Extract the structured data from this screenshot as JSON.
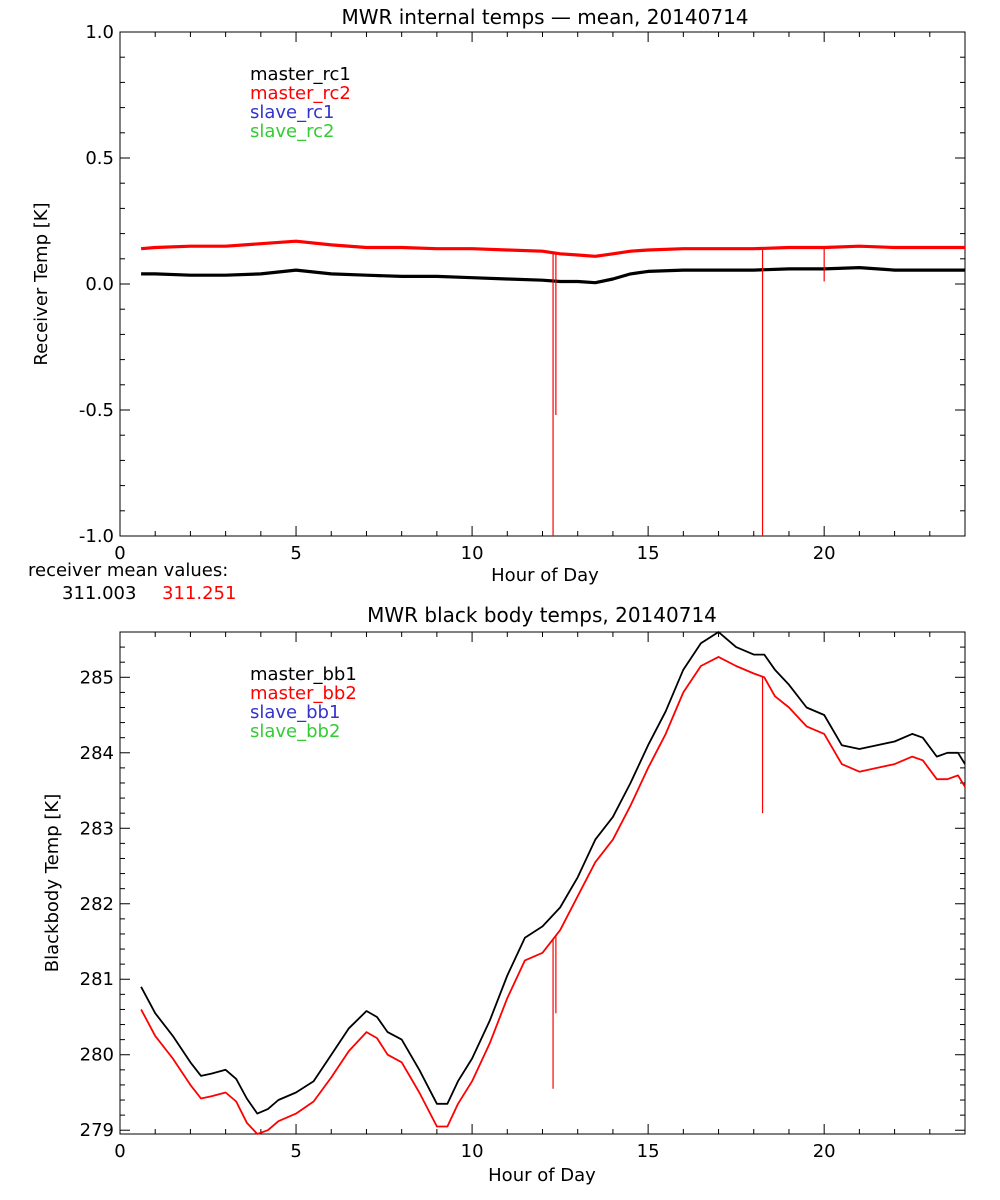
{
  "chart_data": [
    {
      "type": "line",
      "title": "MWR internal temps — mean, 20140714",
      "xlabel": "Hour of Day",
      "ylabel": "Receiver Temp [K]",
      "xlim": [
        0,
        24
      ],
      "ylim": [
        -1.0,
        1.0
      ],
      "x_ticks": [
        0,
        5,
        10,
        15,
        20
      ],
      "x_tick_labels": [
        "0",
        "5",
        "10",
        "15",
        "20"
      ],
      "y_ticks": [
        -1.0,
        -0.5,
        0.0,
        0.5,
        1.0
      ],
      "y_tick_labels": [
        "-1.0",
        "-0.5",
        "0.0",
        "0.5",
        "1.0"
      ],
      "grid": false,
      "legend": [
        {
          "name": "master_rc1",
          "color": "#000000"
        },
        {
          "name": "master_rc2",
          "color": "#ff0000"
        },
        {
          "name": "slave_rc1",
          "color": "#3333cc"
        },
        {
          "name": "slave_rc2",
          "color": "#33cc33"
        }
      ],
      "series": [
        {
          "name": "master_rc1",
          "color": "#000000",
          "x": [
            0.6,
            1,
            2,
            3,
            4,
            5,
            6,
            7,
            8,
            9,
            10,
            11,
            12,
            12.5,
            13,
            13.5,
            14,
            14.5,
            15,
            16,
            17,
            18,
            19,
            20,
            21,
            22,
            23,
            24
          ],
          "y": [
            0.04,
            0.04,
            0.035,
            0.035,
            0.04,
            0.055,
            0.04,
            0.035,
            0.03,
            0.03,
            0.025,
            0.02,
            0.015,
            0.01,
            0.01,
            0.005,
            0.02,
            0.04,
            0.05,
            0.055,
            0.055,
            0.055,
            0.06,
            0.06,
            0.065,
            0.055,
            0.055,
            0.055
          ]
        },
        {
          "name": "master_rc2",
          "color": "#ff0000",
          "x": [
            0.6,
            1,
            2,
            3,
            4,
            5,
            6,
            7,
            8,
            9,
            10,
            11,
            12,
            12.5,
            13,
            13.5,
            14,
            14.5,
            15,
            16,
            17,
            18,
            19,
            20,
            21,
            22,
            23,
            24
          ],
          "y": [
            0.14,
            0.145,
            0.15,
            0.15,
            0.16,
            0.17,
            0.155,
            0.145,
            0.145,
            0.14,
            0.14,
            0.135,
            0.13,
            0.12,
            0.115,
            0.11,
            0.12,
            0.13,
            0.135,
            0.14,
            0.14,
            0.14,
            0.145,
            0.145,
            0.15,
            0.145,
            0.145,
            0.145
          ],
          "spikes": [
            {
              "x": 12.3,
              "y": -1.0
            },
            {
              "x": 12.38,
              "y": -0.52
            },
            {
              "x": 18.25,
              "y": -1.0
            },
            {
              "x": 20.0,
              "y": 0.01
            }
          ]
        }
      ],
      "annotation": {
        "label": "receiver mean values:",
        "values": [
          "311.003",
          "311.251"
        ],
        "colors": [
          "#000000",
          "#ff0000"
        ]
      }
    },
    {
      "type": "line",
      "title": "MWR black body temps, 20140714",
      "xlabel": "Hour of Day",
      "ylabel": "Blackbody Temp [K]",
      "xlim": [
        0,
        24
      ],
      "ylim": [
        278.95,
        285.6
      ],
      "x_ticks": [
        0,
        5,
        10,
        15,
        20
      ],
      "x_tick_labels": [
        "0",
        "5",
        "10",
        "15",
        "20"
      ],
      "y_ticks": [
        279,
        280,
        281,
        282,
        283,
        284,
        285
      ],
      "y_tick_labels": [
        "279",
        "280",
        "281",
        "282",
        "283",
        "284",
        "285"
      ],
      "grid": false,
      "legend": [
        {
          "name": "master_bb1",
          "color": "#000000"
        },
        {
          "name": "master_bb2",
          "color": "#ff0000"
        },
        {
          "name": "slave_bb1",
          "color": "#3333cc"
        },
        {
          "name": "slave_bb2",
          "color": "#33cc33"
        }
      ],
      "series": [
        {
          "name": "master_bb1",
          "color": "#000000",
          "x": [
            0.6,
            1.0,
            1.5,
            2.0,
            2.3,
            2.6,
            3.0,
            3.3,
            3.6,
            3.9,
            4.2,
            4.5,
            5.0,
            5.5,
            6.0,
            6.5,
            7.0,
            7.3,
            7.6,
            8.0,
            8.5,
            9.0,
            9.3,
            9.6,
            10.0,
            10.5,
            11.0,
            11.5,
            12.0,
            12.5,
            13.0,
            13.5,
            14.0,
            14.5,
            15.0,
            15.5,
            16.0,
            16.5,
            17.0,
            17.5,
            18.0,
            18.3,
            18.6,
            19.0,
            19.5,
            20.0,
            20.5,
            21.0,
            21.5,
            22.0,
            22.5,
            22.8,
            23.2,
            23.5,
            23.8,
            24.0
          ],
          "y": [
            280.9,
            280.55,
            280.25,
            279.9,
            279.72,
            279.75,
            279.8,
            279.68,
            279.42,
            279.22,
            279.28,
            279.4,
            279.5,
            279.65,
            280.0,
            280.35,
            280.58,
            280.5,
            280.3,
            280.2,
            279.8,
            279.35,
            279.35,
            279.65,
            279.95,
            280.45,
            281.05,
            281.55,
            281.7,
            281.95,
            282.35,
            282.85,
            283.15,
            283.6,
            284.1,
            284.55,
            285.1,
            285.45,
            285.6,
            285.4,
            285.3,
            285.3,
            285.1,
            284.9,
            284.6,
            284.5,
            284.1,
            284.05,
            284.1,
            284.15,
            284.25,
            284.2,
            283.95,
            284.0,
            284.0,
            283.85
          ]
        },
        {
          "name": "master_bb2",
          "color": "#ff0000",
          "x": [
            0.6,
            1.0,
            1.5,
            2.0,
            2.3,
            2.6,
            3.0,
            3.3,
            3.6,
            3.9,
            4.2,
            4.5,
            5.0,
            5.5,
            6.0,
            6.5,
            7.0,
            7.3,
            7.6,
            8.0,
            8.5,
            9.0,
            9.3,
            9.6,
            10.0,
            10.5,
            11.0,
            11.5,
            12.0,
            12.5,
            13.0,
            13.5,
            14.0,
            14.5,
            15.0,
            15.5,
            16.0,
            16.5,
            17.0,
            17.5,
            18.0,
            18.3,
            18.6,
            19.0,
            19.5,
            20.0,
            20.5,
            21.0,
            21.5,
            22.0,
            22.5,
            22.8,
            23.2,
            23.5,
            23.8,
            24.0
          ],
          "y": [
            280.6,
            280.25,
            279.95,
            279.6,
            279.42,
            279.45,
            279.5,
            279.38,
            279.1,
            278.95,
            279.0,
            279.12,
            279.22,
            279.38,
            279.7,
            280.05,
            280.3,
            280.22,
            280.0,
            279.9,
            279.5,
            279.05,
            279.05,
            279.35,
            279.65,
            280.15,
            280.75,
            281.25,
            281.35,
            281.65,
            282.1,
            282.55,
            282.85,
            283.3,
            283.8,
            284.25,
            284.8,
            285.15,
            285.27,
            285.15,
            285.05,
            285.0,
            284.75,
            284.6,
            284.35,
            284.25,
            283.85,
            283.75,
            283.8,
            283.85,
            283.95,
            283.9,
            283.65,
            283.65,
            283.7,
            283.55
          ],
          "spikes": [
            {
              "x": 12.3,
              "y": 279.55
            },
            {
              "x": 12.38,
              "y": 280.55
            },
            {
              "x": 18.25,
              "y": 283.2
            }
          ]
        }
      ]
    }
  ]
}
